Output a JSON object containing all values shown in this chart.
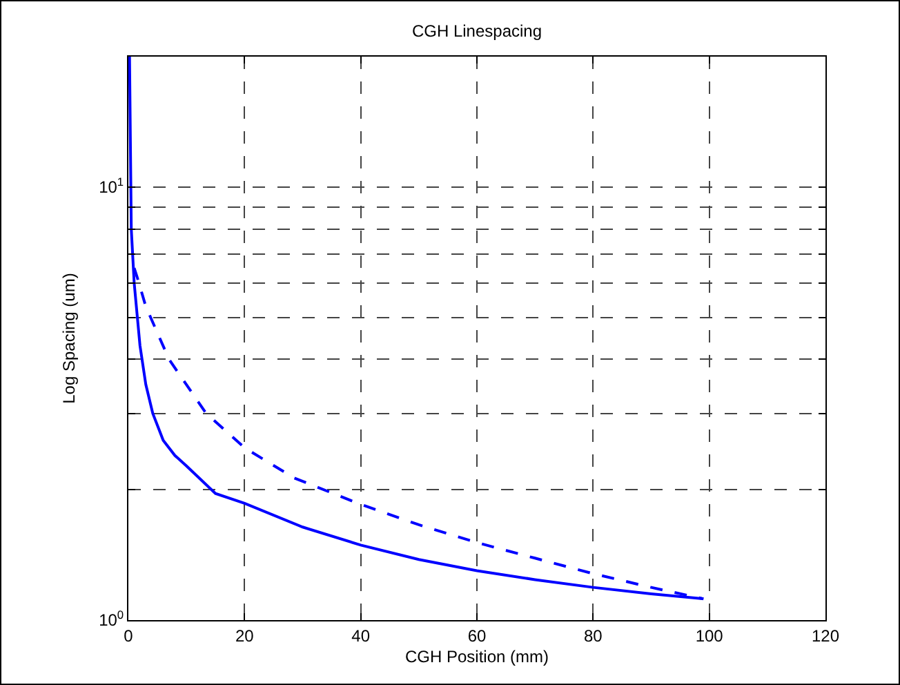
{
  "chart_data": {
    "type": "line",
    "title": "CGH Linespacing",
    "xlabel": "CGH Position (mm)",
    "ylabel": "Log Spacing (um)",
    "log": "y",
    "grid": true,
    "marker": "none",
    "xlim": [
      0,
      120
    ],
    "xticks": [
      0,
      20,
      40,
      60,
      80,
      100,
      120
    ],
    "ylim": [
      1,
      20
    ],
    "yticks": [
      {
        "value": 1,
        "label": "10$^{0}$"
      },
      {
        "value": 2,
        "label": null
      },
      {
        "value": 3,
        "label": null
      },
      {
        "value": 4,
        "label": null
      },
      {
        "value": 5,
        "label": null
      },
      {
        "value": 6,
        "label": null
      },
      {
        "value": 7,
        "label": null
      },
      {
        "value": 8,
        "label": null
      },
      {
        "value": 9,
        "label": null
      },
      {
        "value": 10,
        "label": "10$^{1}$"
      }
    ],
    "series": [
      {
        "color": "#0000ff",
        "line_style": "solid",
        "x": [
          0.2,
          0.5,
          1,
          2,
          3,
          4.2,
          6,
          8,
          10,
          15,
          20,
          30,
          40,
          50,
          60,
          70,
          80,
          90,
          99
        ],
        "values": [
          20,
          8,
          6,
          4.3,
          3.5,
          3.0,
          2.6,
          2.4,
          2.27,
          1.96,
          1.86,
          1.64,
          1.49,
          1.38,
          1.3,
          1.24,
          1.19,
          1.15,
          1.12
        ]
      },
      {
        "color": "#0000ff",
        "line_style": "dashed",
        "x": [
          1,
          1.5,
          3,
          7,
          13.4,
          20,
          28.5,
          40,
          50,
          60,
          70,
          80,
          90,
          99
        ],
        "values": [
          6.5,
          6.2,
          5.3,
          4.0,
          3.0,
          2.5,
          2.13,
          1.85,
          1.66,
          1.51,
          1.39,
          1.28,
          1.19,
          1.12
        ]
      }
    ]
  }
}
